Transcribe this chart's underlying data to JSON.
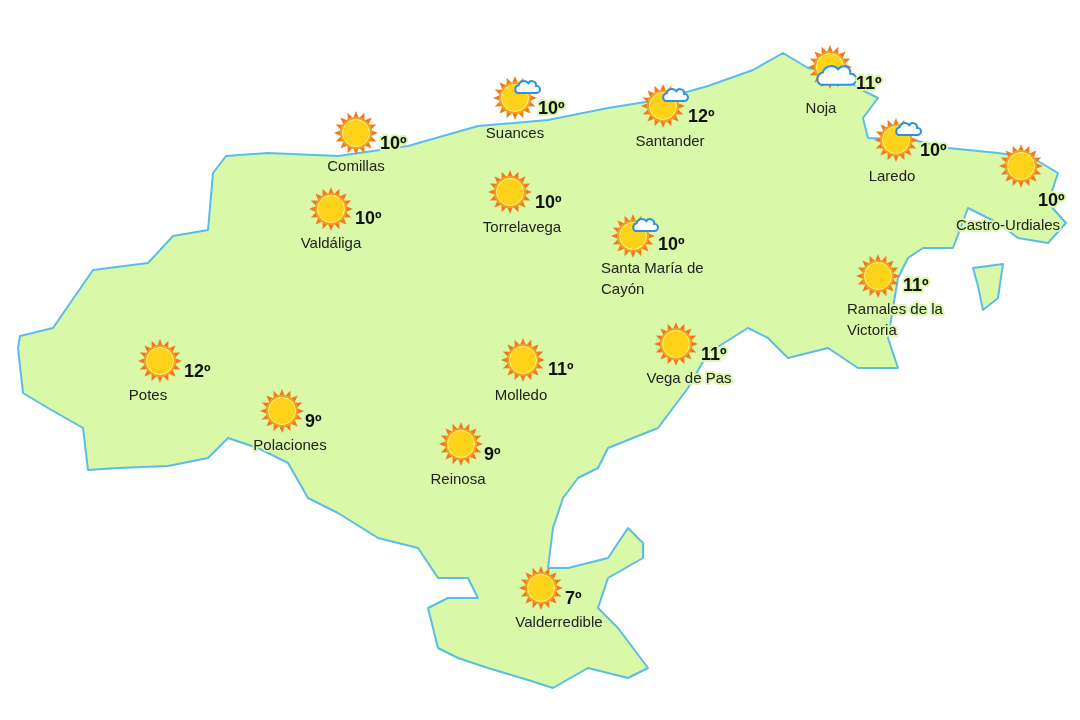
{
  "chart_data": {
    "type": "other",
    "categories": [
      "Comillas",
      "Suances",
      "Santander",
      "Noja",
      "Laredo",
      "Castro-Urdiales",
      "Valdáliga",
      "Torrelavega",
      "Santa María de Cayón",
      "Ramales de la Victoria",
      "Potes",
      "Molledo",
      "Vega de Pas",
      "Polaciones",
      "Reinosa",
      "Valderredible"
    ],
    "values": [
      10,
      10,
      12,
      11,
      10,
      10,
      10,
      10,
      10,
      11,
      12,
      11,
      11,
      9,
      9,
      7
    ],
    "value_labels": [
      "10º",
      "10º",
      "12º",
      "11º",
      "10º",
      "10º",
      "10º",
      "10º",
      "10º",
      "11º",
      "12º",
      "11º",
      "11º",
      "9º",
      "9º",
      "7º"
    ]
  }
}
